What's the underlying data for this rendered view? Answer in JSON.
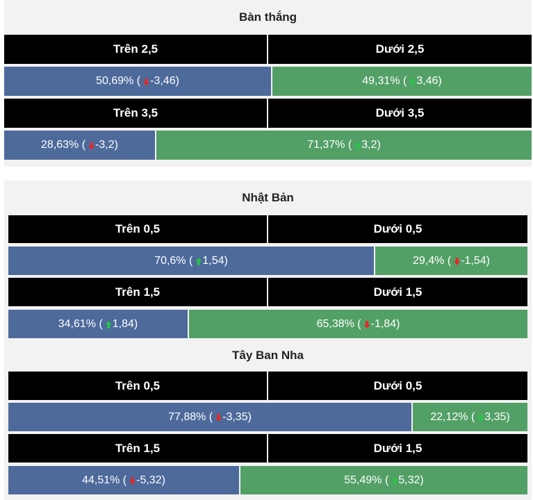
{
  "sections": [
    {
      "title": "Bàn thắng",
      "rows": [
        {
          "over_label": "Trên 2,5",
          "under_label": "Dưới 2,5",
          "over": {
            "pct": "50,69%",
            "dir": "down",
            "delta": "-3,46",
            "fraction": 0.5069
          },
          "under": {
            "pct": "49,31%",
            "dir": "up",
            "delta": "3,46",
            "fraction": 0.4931
          }
        },
        {
          "over_label": "Trên 3,5",
          "under_label": "Dưới 3,5",
          "over": {
            "pct": "28,63%",
            "dir": "down",
            "delta": "-3,2",
            "fraction": 0.2863
          },
          "under": {
            "pct": "71,37%",
            "dir": "up",
            "delta": "3,2",
            "fraction": 0.7137
          }
        }
      ]
    },
    {
      "title": "Nhật Bản",
      "rows": [
        {
          "over_label": "Trên 0,5",
          "under_label": "Dưới 0,5",
          "over": {
            "pct": "70,6%",
            "dir": "up",
            "delta": "1,54",
            "fraction": 0.706
          },
          "under": {
            "pct": "29,4%",
            "dir": "down",
            "delta": "-1,54",
            "fraction": 0.294
          }
        },
        {
          "over_label": "Trên 1,5",
          "under_label": "Dưới 1,5",
          "over": {
            "pct": "34,61%",
            "dir": "up",
            "delta": "1,84",
            "fraction": 0.3461
          },
          "under": {
            "pct": "65,38%",
            "dir": "down",
            "delta": "-1,84",
            "fraction": 0.6538
          }
        }
      ]
    },
    {
      "title": "Tây Ban Nha",
      "rows": [
        {
          "over_label": "Trên 0,5",
          "under_label": "Dưới 0,5",
          "over": {
            "pct": "77,88%",
            "dir": "down",
            "delta": "-3,35",
            "fraction": 0.7788
          },
          "under": {
            "pct": "22,12%",
            "dir": "up",
            "delta": "3,35",
            "fraction": 0.2212
          }
        },
        {
          "over_label": "Trên 1,5",
          "under_label": "Dưới 1,5",
          "over": {
            "pct": "44,51%",
            "dir": "down",
            "delta": "-5,32",
            "fraction": 0.4451
          },
          "under": {
            "pct": "55,49%",
            "dir": "up",
            "delta": "5,32",
            "fraction": 0.5549
          }
        }
      ]
    }
  ],
  "colors": {
    "over": "#4d6a9b",
    "under": "#53a067",
    "header": "#000000",
    "arrow_up": "#2cc24a",
    "arrow_down": "#e02a2a"
  }
}
